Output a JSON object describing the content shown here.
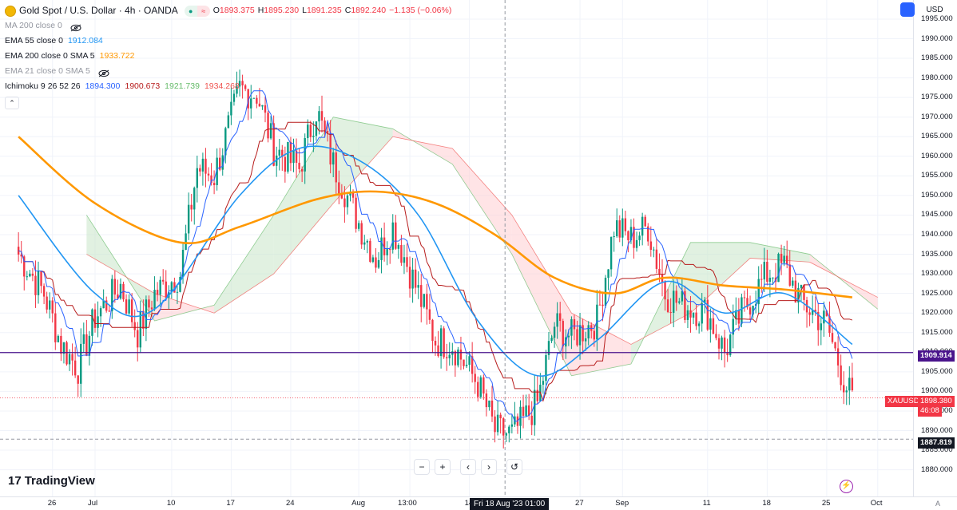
{
  "header": {
    "title": "Gold Spot / U.S. Dollar · 4h · OANDA",
    "ohlc": [
      {
        "label": "O",
        "value": "1893.375"
      },
      {
        "label": "H",
        "value": "1895.230"
      },
      {
        "label": "L",
        "value": "1891.235"
      },
      {
        "label": "C",
        "value": "1892.240"
      },
      {
        "label": "",
        "value": "−1.135 (−0.06%)"
      }
    ]
  },
  "indicators": [
    {
      "name": "MA 200 close 0",
      "hidden": true,
      "values": []
    },
    {
      "name": "EMA 55 close 0",
      "hidden": false,
      "values": [
        {
          "v": "1912.084",
          "color": "#2196f3"
        }
      ]
    },
    {
      "name": "EMA 200 close 0 SMA 5",
      "hidden": false,
      "values": [
        {
          "v": "1933.722",
          "color": "#ff9800"
        }
      ]
    },
    {
      "name": "EMA 21 close 0 SMA 5",
      "hidden": true,
      "values": []
    },
    {
      "name": "Ichimoku 9 26 52 26",
      "hidden": false,
      "values": [
        {
          "v": "1894.300",
          "color": "#2962ff"
        },
        {
          "v": "1900.673",
          "color": "#b71c1c"
        },
        {
          "v": "1921.739",
          "color": "#66bb6a"
        },
        {
          "v": "1934.268",
          "color": "#ef5350"
        }
      ]
    }
  ],
  "toolbar": {
    "currency": "USD",
    "nav": [
      "−",
      "+",
      "‹",
      "›",
      "↺"
    ],
    "logo": "TradingView",
    "logo_mark": "17",
    "auto_label": "A"
  },
  "price_labels": {
    "hline_price": "1909.914",
    "symbol": "XAUUSD",
    "last_price": "1898.380",
    "countdown": "46:08",
    "crosshair_price": "1887.819"
  },
  "crosshair_time": "Fri 18 Aug '23  01:00",
  "colors": {
    "up": "#089981",
    "down": "#f23645",
    "ema55": "#2196f3",
    "ema200": "#ff9800",
    "tenkan": "#2962ff",
    "kijun": "#b71c1c",
    "cloud_bull": "#c8e6c9",
    "cloud_bear": "#ffcdd2",
    "hline": "#4a148c"
  },
  "chart_data": {
    "type": "candlestick",
    "symbol": "Gold Spot / U.S. Dollar",
    "interval": "4h",
    "x_ticks": [
      "26",
      "Jul",
      "10",
      "17",
      "24",
      "Aug",
      "13:00",
      "14",
      "27",
      "Sep",
      "11",
      "18",
      "25",
      "Oct"
    ],
    "y_ticks": [
      "1880.000",
      "1885.000",
      "1890.000",
      "1895.000",
      "1900.000",
      "1905.000",
      "1910.000",
      "1915.000",
      "1920.000",
      "1925.000",
      "1930.000",
      "1935.000",
      "1940.000",
      "1945.000",
      "1950.000",
      "1955.000",
      "1960.000",
      "1965.000",
      "1970.000",
      "1975.000",
      "1980.000",
      "1985.000",
      "1990.000",
      "1995.000"
    ],
    "ylim": [
      1875,
      1997
    ],
    "close_path": [
      {
        "x": "Jun 22",
        "y": 1935
      },
      {
        "x": "Jun 25",
        "y": 1925
      },
      {
        "x": "Jun 27",
        "y": 1912
      },
      {
        "x": "Jun 29",
        "y": 1906
      },
      {
        "x": "Jul 1",
        "y": 1919
      },
      {
        "x": "Jul 4",
        "y": 1927
      },
      {
        "x": "Jul 6",
        "y": 1915
      },
      {
        "x": "Jul 8",
        "y": 1925
      },
      {
        "x": "Jul 11",
        "y": 1930
      },
      {
        "x": "Jul 13",
        "y": 1957
      },
      {
        "x": "Jul 15",
        "y": 1955
      },
      {
        "x": "Jul 18",
        "y": 1977
      },
      {
        "x": "Jul 20",
        "y": 1976
      },
      {
        "x": "Jul 22",
        "y": 1962
      },
      {
        "x": "Jul 25",
        "y": 1957
      },
      {
        "x": "Jul 27",
        "y": 1972
      },
      {
        "x": "Jul 29",
        "y": 1958
      },
      {
        "x": "Aug 1",
        "y": 1943
      },
      {
        "x": "Aug 3",
        "y": 1934
      },
      {
        "x": "Aug 5",
        "y": 1942
      },
      {
        "x": "Aug 8",
        "y": 1925
      },
      {
        "x": "Aug 10",
        "y": 1913
      },
      {
        "x": "Aug 12",
        "y": 1912
      },
      {
        "x": "Aug 15",
        "y": 1902
      },
      {
        "x": "Aug 17",
        "y": 1890
      },
      {
        "x": "Aug 19",
        "y": 1889
      },
      {
        "x": "Aug 22",
        "y": 1897
      },
      {
        "x": "Aug 24",
        "y": 1917
      },
      {
        "x": "Aug 26",
        "y": 1914
      },
      {
        "x": "Aug 29",
        "y": 1918
      },
      {
        "x": "Aug 31",
        "y": 1942
      },
      {
        "x": "Sep 2",
        "y": 1939
      },
      {
        "x": "Sep 4",
        "y": 1942
      },
      {
        "x": "Sep 6",
        "y": 1925
      },
      {
        "x": "Sep 8",
        "y": 1922
      },
      {
        "x": "Sep 11",
        "y": 1920
      },
      {
        "x": "Sep 13",
        "y": 1910
      },
      {
        "x": "Sep 15",
        "y": 1920
      },
      {
        "x": "Sep 18",
        "y": 1930
      },
      {
        "x": "Sep 20",
        "y": 1932
      },
      {
        "x": "Sep 22",
        "y": 1923
      },
      {
        "x": "Sep 25",
        "y": 1917
      },
      {
        "x": "Sep 27",
        "y": 1903
      },
      {
        "x": "Sep 28",
        "y": 1898
      }
    ],
    "ema55": [
      {
        "x": "Jun 22",
        "y": 1950
      },
      {
        "x": "Jul 1",
        "y": 1925
      },
      {
        "x": "Jul 8",
        "y": 1921
      },
      {
        "x": "Jul 18",
        "y": 1950
      },
      {
        "x": "Jul 25",
        "y": 1962
      },
      {
        "x": "Aug 1",
        "y": 1959
      },
      {
        "x": "Aug 8",
        "y": 1945
      },
      {
        "x": "Aug 15",
        "y": 1918
      },
      {
        "x": "Aug 22",
        "y": 1904
      },
      {
        "x": "Aug 29",
        "y": 1913
      },
      {
        "x": "Sep 6",
        "y": 1928
      },
      {
        "x": "Sep 13",
        "y": 1920
      },
      {
        "x": "Sep 20",
        "y": 1925
      },
      {
        "x": "Sep 28",
        "y": 1912
      }
    ],
    "ema200": [
      {
        "x": "Jun 22",
        "y": 1965
      },
      {
        "x": "Jul 1",
        "y": 1948
      },
      {
        "x": "Jul 11",
        "y": 1938
      },
      {
        "x": "Jul 18",
        "y": 1942
      },
      {
        "x": "Jul 27",
        "y": 1949
      },
      {
        "x": "Aug 3",
        "y": 1951
      },
      {
        "x": "Aug 10",
        "y": 1948
      },
      {
        "x": "Aug 17",
        "y": 1940
      },
      {
        "x": "Aug 24",
        "y": 1929
      },
      {
        "x": "Aug 31",
        "y": 1925
      },
      {
        "x": "Sep 6",
        "y": 1929
      },
      {
        "x": "Sep 13",
        "y": 1927
      },
      {
        "x": "Sep 20",
        "y": 1926
      },
      {
        "x": "Sep 28",
        "y": 1924
      }
    ],
    "cloud_span_a": [
      {
        "x": "Jun 30",
        "y": 1945
      },
      {
        "x": "Jul 8",
        "y": 1918
      },
      {
        "x": "Jul 15",
        "y": 1922
      },
      {
        "x": "Jul 22",
        "y": 1945
      },
      {
        "x": "Jul 29",
        "y": 1970
      },
      {
        "x": "Aug 5",
        "y": 1967
      },
      {
        "x": "Aug 12",
        "y": 1958
      },
      {
        "x": "Aug 19",
        "y": 1935
      },
      {
        "x": "Aug 26",
        "y": 1904
      },
      {
        "x": "Sep 2",
        "y": 1907
      },
      {
        "x": "Sep 9",
        "y": 1938
      },
      {
        "x": "Sep 16",
        "y": 1938
      },
      {
        "x": "Sep 23",
        "y": 1935
      },
      {
        "x": "Oct 1",
        "y": 1921
      }
    ],
    "cloud_span_b": [
      {
        "x": "Jun 30",
        "y": 1935
      },
      {
        "x": "Jul 8",
        "y": 1925
      },
      {
        "x": "Jul 15",
        "y": 1920
      },
      {
        "x": "Jul 22",
        "y": 1930
      },
      {
        "x": "Jul 29",
        "y": 1948
      },
      {
        "x": "Aug 5",
        "y": 1965
      },
      {
        "x": "Aug 12",
        "y": 1962
      },
      {
        "x": "Aug 19",
        "y": 1945
      },
      {
        "x": "Aug 26",
        "y": 1920
      },
      {
        "x": "Sep 2",
        "y": 1912
      },
      {
        "x": "Sep 9",
        "y": 1920
      },
      {
        "x": "Sep 16",
        "y": 1934
      },
      {
        "x": "Sep 23",
        "y": 1933
      },
      {
        "x": "Oct 1",
        "y": 1924
      }
    ]
  }
}
